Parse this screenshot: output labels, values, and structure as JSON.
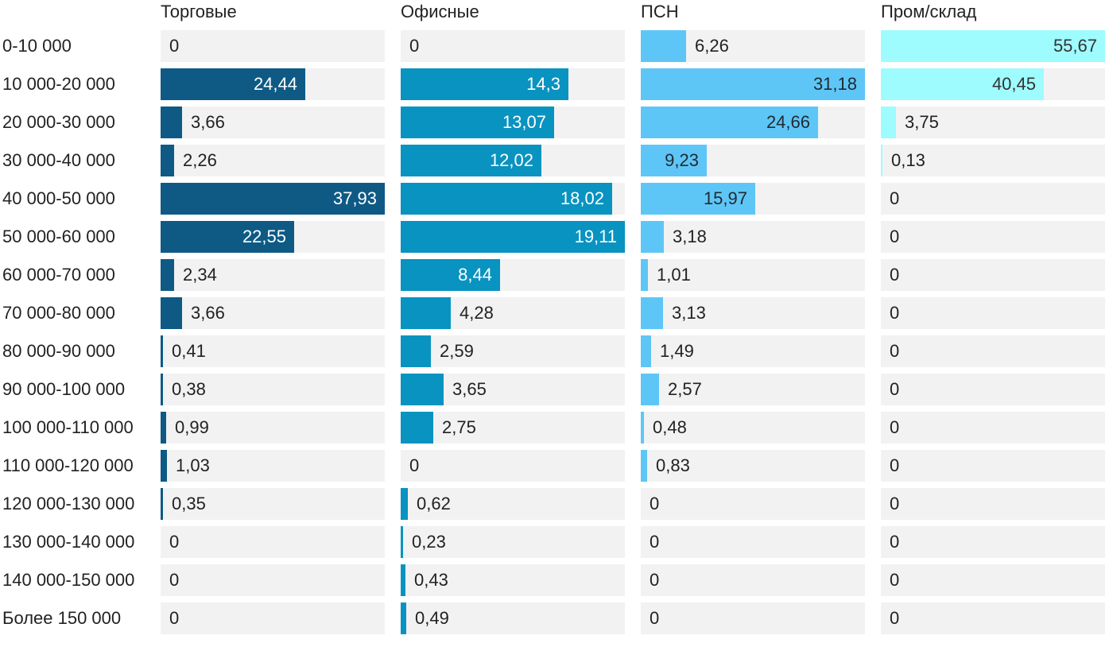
{
  "chart_data": {
    "type": "bar",
    "orientation": "horizontal",
    "layout": "small-multiples",
    "categories": [
      "0-10 000",
      "10 000-20 000",
      "20 000-30 000",
      "30 000-40 000",
      "40 000-50 000",
      "50 000-60 000",
      "60 000-70 000",
      "70 000-80 000",
      "80 000-90 000",
      "90 000-100 000",
      "100 000-110 000",
      "110 000-120 000",
      "120 000-130 000",
      "130 000-140 000",
      "140 000-150 000",
      "Более 150 000"
    ],
    "series": [
      {
        "name": "Торговые",
        "color": "#0e5a85",
        "labels": [
          "0",
          "24,44",
          "3,66",
          "2,26",
          "37,93",
          "22,55",
          "2,34",
          "3,66",
          "0,41",
          "0,38",
          "0,99",
          "1,03",
          "0,35",
          "0",
          "0",
          "0"
        ],
        "values": [
          0,
          24.44,
          3.66,
          2.26,
          37.93,
          22.55,
          2.34,
          3.66,
          0.41,
          0.38,
          0.99,
          1.03,
          0.35,
          0,
          0,
          0
        ],
        "xlim": [
          0,
          37.93
        ]
      },
      {
        "name": "Офисные",
        "color": "#0993c0",
        "labels": [
          "0",
          "14,3",
          "13,07",
          "12,02",
          "18,02",
          "19,11",
          "8,44",
          "4,28",
          "2,59",
          "3,65",
          "2,75",
          "0",
          "0,62",
          "0,23",
          "0,43",
          "0,49"
        ],
        "values": [
          0,
          14.3,
          13.07,
          12.02,
          18.02,
          19.11,
          8.44,
          4.28,
          2.59,
          3.65,
          2.75,
          0,
          0.62,
          0.23,
          0.43,
          0.49
        ],
        "xlim": [
          0,
          19.11
        ]
      },
      {
        "name": "ПСН",
        "color": "#5ec6f6",
        "labels": [
          "6,26",
          "31,18",
          "24,66",
          "9,23",
          "15,97",
          "3,18",
          "1,01",
          "3,13",
          "1,49",
          "2,57",
          "0,48",
          "0,83",
          "0",
          "0",
          "0",
          "0"
        ],
        "values": [
          6.26,
          31.18,
          24.66,
          9.23,
          15.97,
          3.18,
          1.01,
          3.13,
          1.49,
          2.57,
          0.48,
          0.83,
          0,
          0,
          0,
          0
        ],
        "xlim": [
          0,
          31.18
        ]
      },
      {
        "name": "Пром/склад",
        "color": "#9efbfe",
        "labels": [
          "55,67",
          "40,45",
          "3,75",
          "0,13",
          "0",
          "0",
          "0",
          "0",
          "0",
          "0",
          "0",
          "0",
          "0",
          "0",
          "0",
          "0"
        ],
        "values": [
          55.67,
          40.45,
          3.75,
          0.13,
          0,
          0,
          0,
          0,
          0,
          0,
          0,
          0,
          0,
          0,
          0,
          0
        ],
        "xlim": [
          0,
          55.67
        ]
      }
    ],
    "title": "",
    "xlabel": "",
    "ylabel": "",
    "grid": false,
    "legend": "none"
  }
}
